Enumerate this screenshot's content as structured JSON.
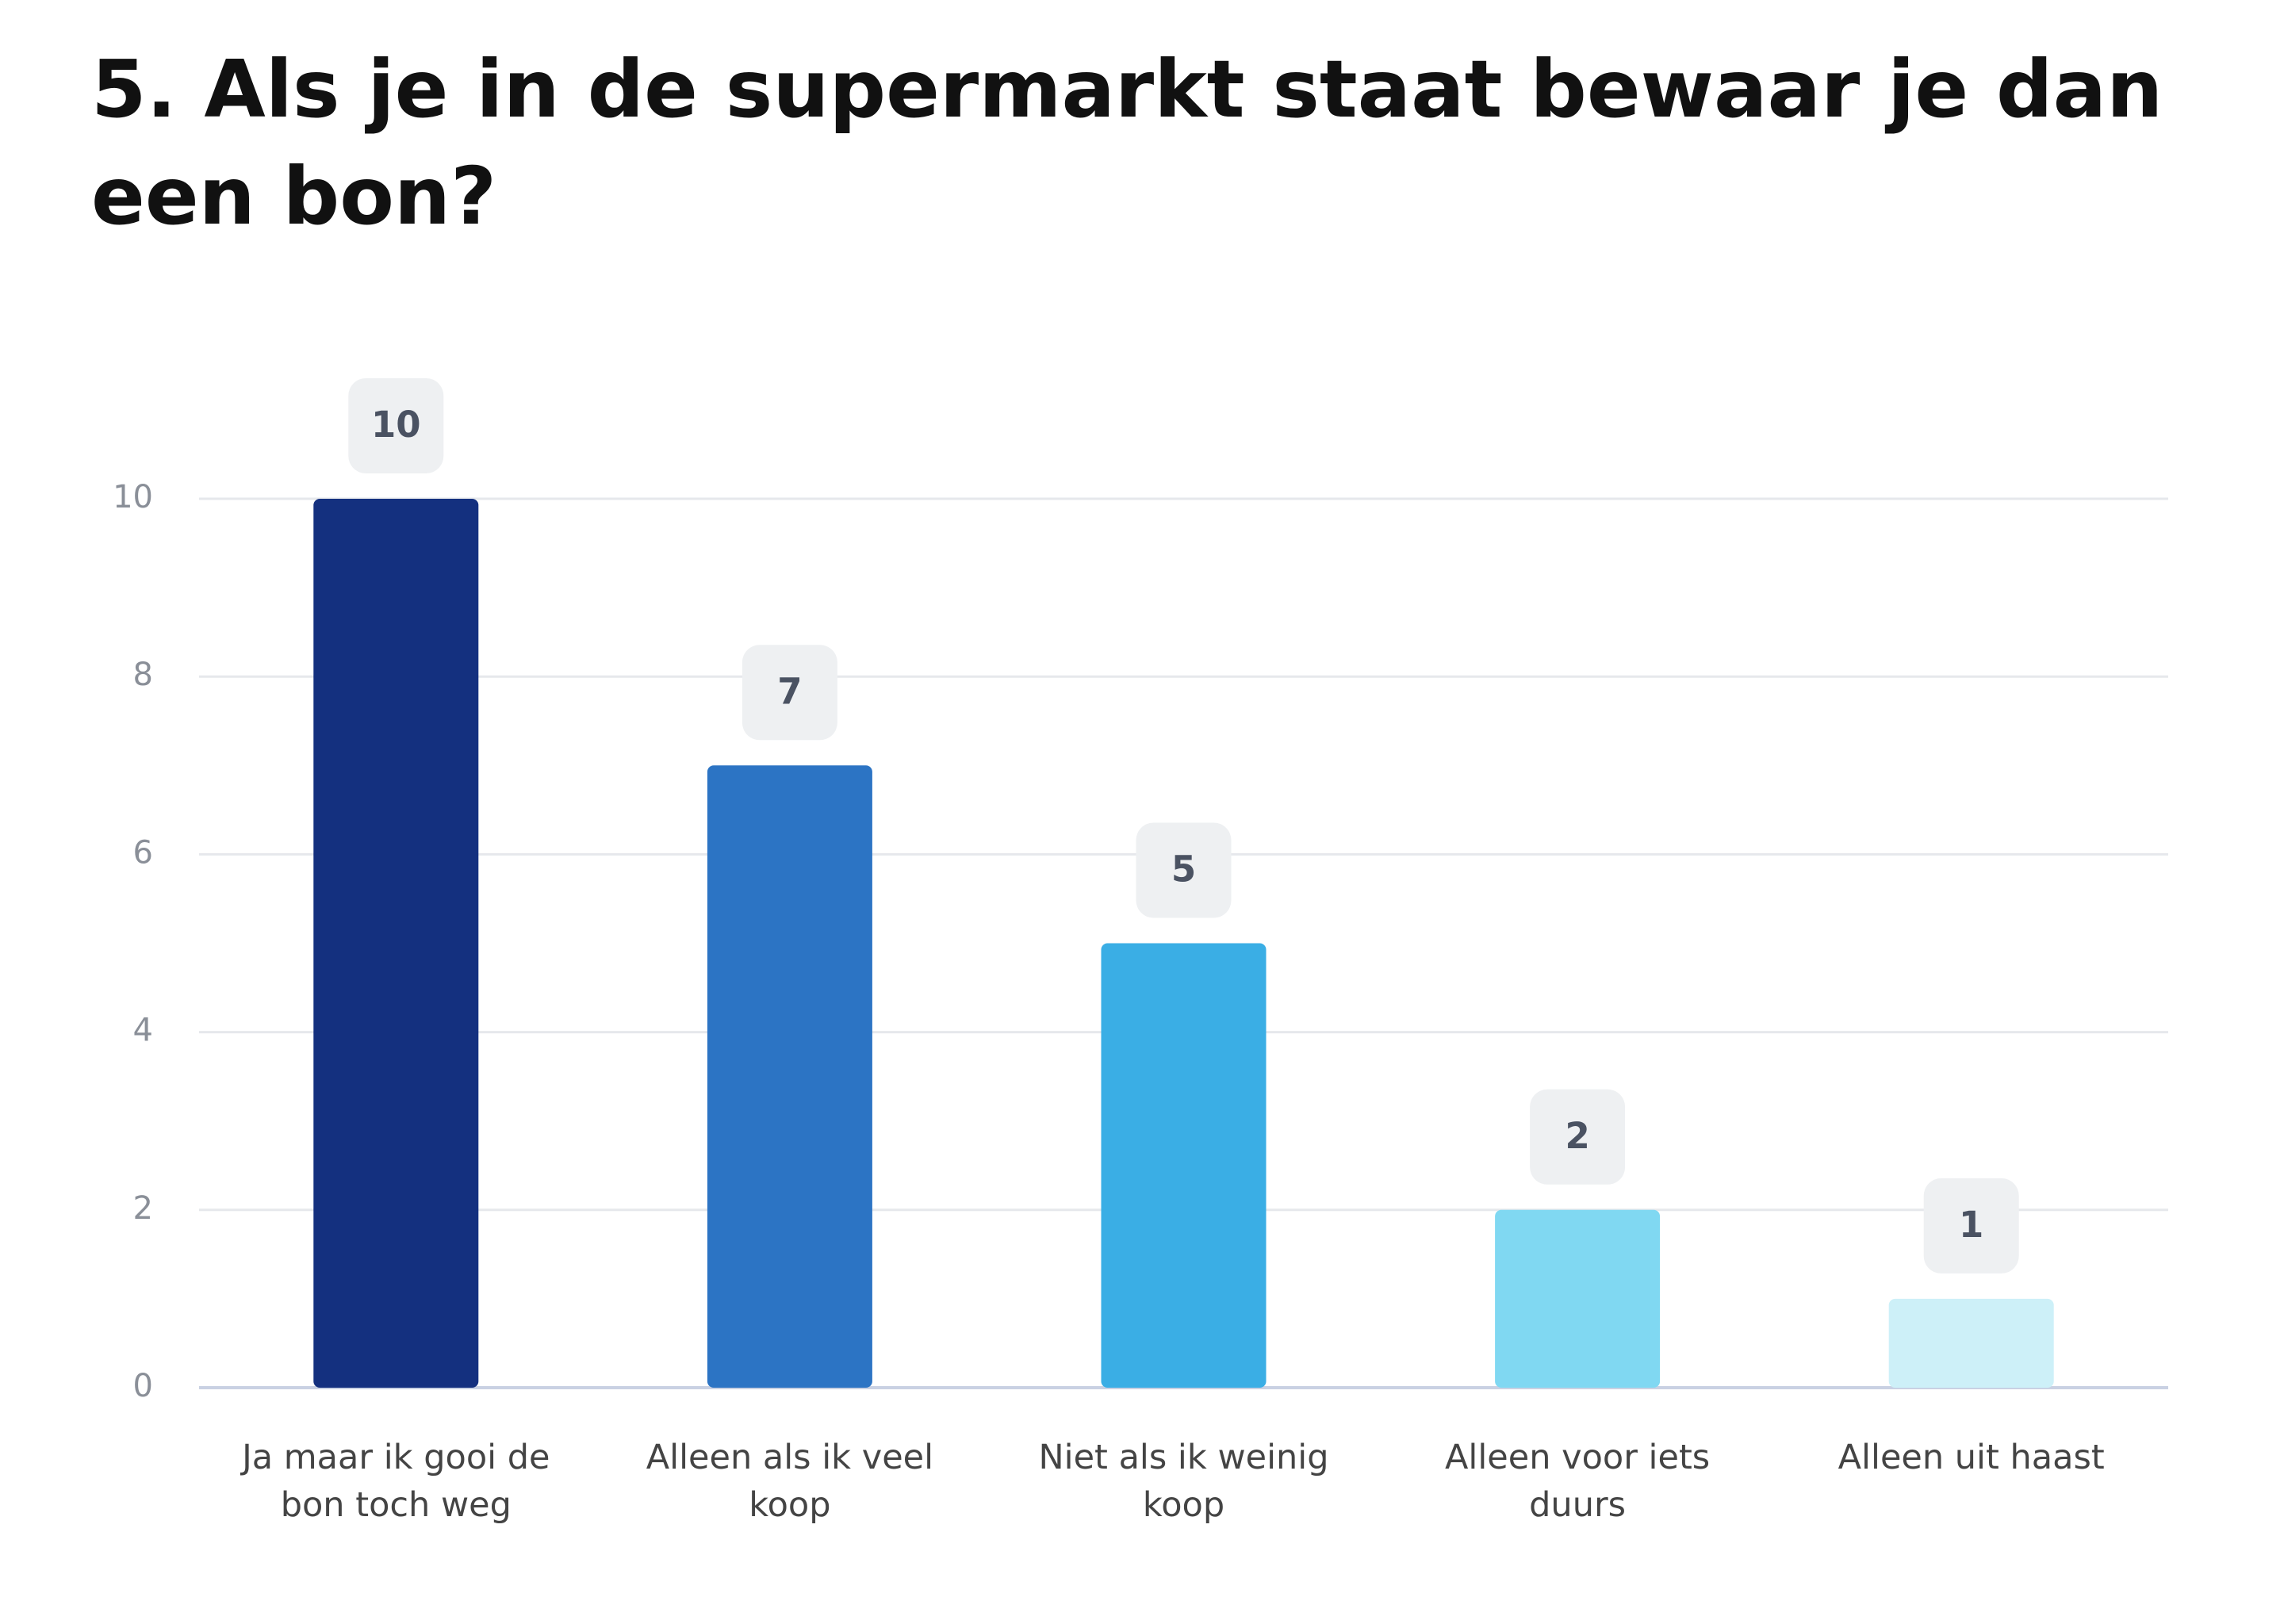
{
  "chart_data": {
    "type": "bar",
    "title": "5. Als je in de supermarkt staat bewaar je dan een bon?",
    "categories": [
      "Ja maar ik gooi de bon toch weg",
      "Alleen als ik veel koop",
      "Niet als ik weinig koop",
      "Alleen voor iets duurs",
      "Alleen uit haast"
    ],
    "values": [
      10,
      7,
      5,
      2,
      1
    ],
    "colors": [
      "#14307f",
      "#2c74c4",
      "#3aaee5",
      "#80d8f2",
      "#cdf0f8"
    ],
    "ylim": [
      0,
      10
    ],
    "yticks": [
      0,
      2,
      4,
      6,
      8,
      10
    ],
    "grid": true
  }
}
